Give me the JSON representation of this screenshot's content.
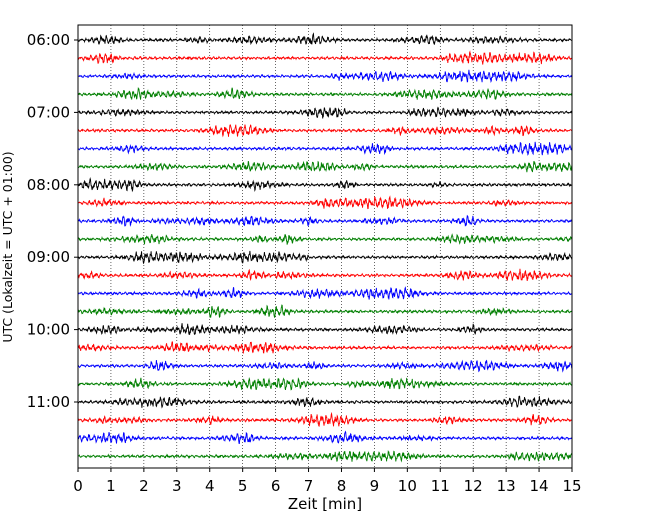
{
  "chart_data": {
    "type": "line",
    "title": "",
    "xlabel": "Zeit  [min]",
    "ylabel": "UTC (Lokalzeit = UTC + 01:00)",
    "xlim": [
      0,
      15
    ],
    "x_ticks": [
      0,
      1,
      2,
      3,
      4,
      5,
      6,
      7,
      8,
      9,
      10,
      11,
      12,
      13,
      14,
      15
    ],
    "y_tick_labels": [
      "06:00",
      "07:00",
      "08:00",
      "09:00",
      "10:00",
      "11:00"
    ],
    "grid": "vertical dotted at each minute",
    "traces_per_hour": 4,
    "trace_start_times": [
      "06:00",
      "06:15",
      "06:30",
      "06:45",
      "07:00",
      "07:15",
      "07:30",
      "07:45",
      "08:00",
      "08:15",
      "08:30",
      "08:45",
      "09:00",
      "09:15",
      "09:30",
      "09:45",
      "10:00",
      "10:15",
      "10:30",
      "10:45",
      "11:00",
      "11:15",
      "11:30",
      "11:45"
    ],
    "color_cycle": [
      "#000000",
      "#ff0000",
      "#0000ff",
      "#007f00"
    ],
    "series_description": "seismic helicorder: each line is 15 min of ground motion, colors cycle per 15-min segment"
  }
}
